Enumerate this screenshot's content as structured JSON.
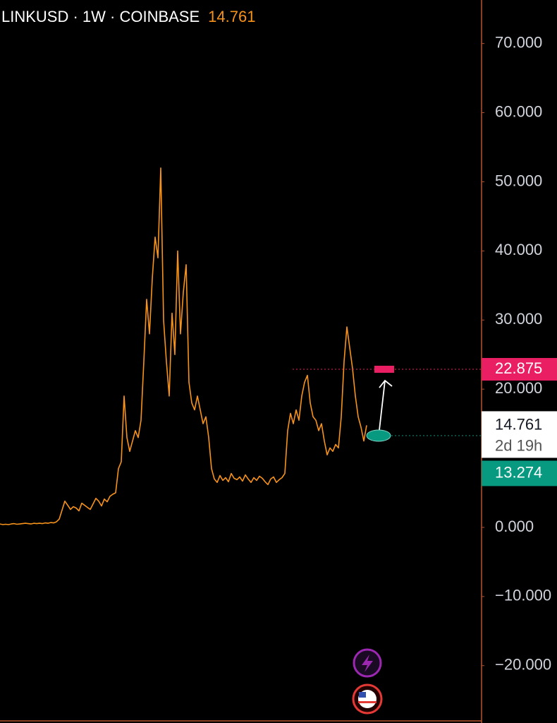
{
  "chart_data": {
    "type": "line",
    "title": "LINKUSD · 1W · COINBASE",
    "series": [
      {
        "name": "LINKUSD",
        "color": "#f7931a",
        "values": [
          0.5,
          0.4,
          0.45,
          0.4,
          0.5,
          0.55,
          0.45,
          0.5,
          0.55,
          0.6,
          0.55,
          0.5,
          0.6,
          0.55,
          0.6,
          0.55,
          0.65,
          0.6,
          0.7,
          0.65,
          0.8,
          1.2,
          2.5,
          3.8,
          3.2,
          2.6,
          3,
          2.8,
          2.4,
          3.5,
          3.2,
          2.9,
          2.6,
          3.4,
          4.2,
          3.8,
          3.1,
          4.1,
          3.7,
          4.5,
          4.8,
          5,
          8.5,
          9.5,
          19,
          13,
          11,
          12.5,
          14,
          13,
          15.5,
          24,
          33,
          28,
          36,
          42,
          39,
          52,
          30,
          24,
          19,
          31,
          25,
          40,
          28,
          34,
          38,
          21,
          18,
          17,
          19,
          17,
          15,
          16,
          13,
          8.5,
          7,
          6.5,
          7.5,
          6.8,
          7.2,
          6.6,
          7.8,
          7.1,
          6.9,
          7.3,
          6.7,
          7.6,
          7,
          6.5,
          7.2,
          6.8,
          7.4,
          7.1,
          6.6,
          6.2,
          7,
          7.3,
          6.5,
          6.9,
          7.2,
          7.8,
          14,
          16.5,
          15,
          17,
          15.5,
          19,
          21,
          22,
          18,
          16,
          15.5,
          14,
          15,
          12.5,
          10.5,
          11.5,
          11,
          12,
          11.5,
          16,
          24,
          29,
          26,
          23,
          19,
          16,
          14.5,
          12.5,
          14.761
        ]
      }
    ],
    "ylim": [
      -28.3,
      76.3
    ],
    "yticks": [
      {
        "value": 70,
        "label": "70.000"
      },
      {
        "value": 60,
        "label": "60.000"
      },
      {
        "value": 50,
        "label": "50.000"
      },
      {
        "value": 40,
        "label": "40.000"
      },
      {
        "value": 30,
        "label": "30.000"
      },
      {
        "value": 20,
        "label": "20.000"
      },
      {
        "value": 0,
        "label": "0.000"
      },
      {
        "value": -10,
        "label": "−10.000"
      },
      {
        "value": -20,
        "label": "−20.000"
      }
    ],
    "last_price": {
      "value": 14.761,
      "label": "14.761",
      "countdown": "2d 19h"
    },
    "price_lines": [
      {
        "value": 22.875,
        "label": "22.875",
        "color": "#e91e63"
      },
      {
        "value": 13.274,
        "label": "13.274",
        "color": "#089981"
      }
    ]
  }
}
